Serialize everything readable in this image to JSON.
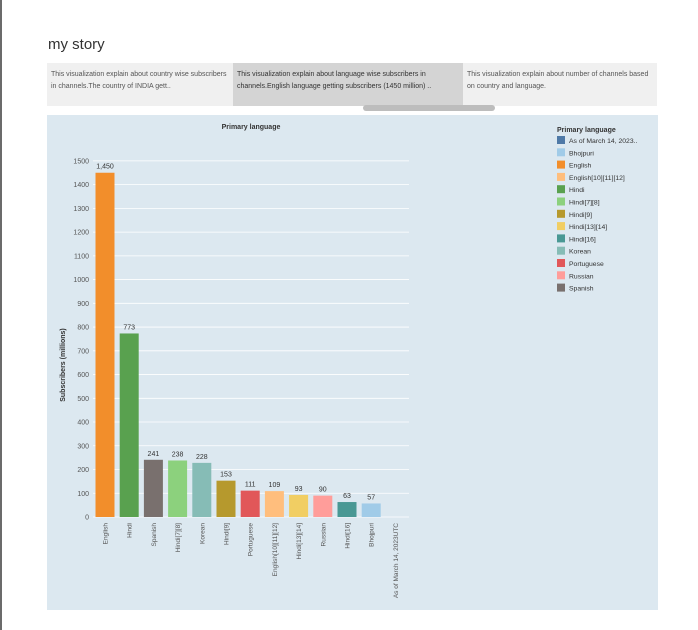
{
  "story": {
    "title": "my story",
    "tabs": [
      {
        "text": "This visualization explain about country wise subscribers in channels.The country of  INDIA gett..",
        "active": false
      },
      {
        "text": "This visualization explain about language wise subscribers in channels.English language getting subscribers (1450 million) ..",
        "active": true
      },
      {
        "text": "This visualization explain about number of channels based on country and language.",
        "active": false
      }
    ]
  },
  "chart_data": {
    "type": "bar",
    "title": "Primary language",
    "ylabel": "Subscribers (millions)",
    "xlabel": "",
    "ylim": [
      0,
      1550
    ],
    "yticks": [
      0,
      100,
      200,
      300,
      400,
      500,
      600,
      700,
      800,
      900,
      1000,
      1100,
      1200,
      1300,
      1400,
      1500
    ],
    "grid": true,
    "categories": [
      "English",
      "Hindi",
      "Spanish",
      "Hindi[7][8]",
      "Korean",
      "Hindi[9]",
      "Portuguese",
      "English[10][11][12]",
      "Hindi[13][14]",
      "Russian",
      "Hindi[16]",
      "Bhojpuri",
      "As of March 14, 2023UTC"
    ],
    "values": [
      1450,
      773,
      241,
      238,
      228,
      153,
      111,
      109,
      93,
      90,
      63,
      57,
      null
    ],
    "value_labels": [
      "1,450",
      "773",
      "241",
      "238",
      "228",
      "153",
      "111",
      "109",
      "93",
      "90",
      "63",
      "57",
      ""
    ],
    "colors": [
      "#f28e2b",
      "#59a14f",
      "#79706e",
      "#8cd17d",
      "#86bcb6",
      "#b6992d",
      "#e15759",
      "#ffbe7d",
      "#f1ce63",
      "#ff9d9a",
      "#499894",
      "#a0cbe8",
      "#4e79a7"
    ],
    "legend": {
      "title": "Primary language",
      "placement": "right",
      "items": [
        {
          "label": "As of March 14, 2023..",
          "color": "#4e79a7"
        },
        {
          "label": "Bhojpuri",
          "color": "#a0cbe8"
        },
        {
          "label": "English",
          "color": "#f28e2b"
        },
        {
          "label": "English[10][11][12]",
          "color": "#ffbe7d"
        },
        {
          "label": "Hindi",
          "color": "#59a14f"
        },
        {
          "label": "Hindi[7][8]",
          "color": "#8cd17d"
        },
        {
          "label": "Hindi[9]",
          "color": "#b6992d"
        },
        {
          "label": "Hindi[13][14]",
          "color": "#f1ce63"
        },
        {
          "label": "Hindi[16]",
          "color": "#499894"
        },
        {
          "label": "Korean",
          "color": "#86bcb6"
        },
        {
          "label": "Portuguese",
          "color": "#e15759"
        },
        {
          "label": "Russian",
          "color": "#ff9d9a"
        },
        {
          "label": "Spanish",
          "color": "#79706e"
        }
      ]
    }
  }
}
